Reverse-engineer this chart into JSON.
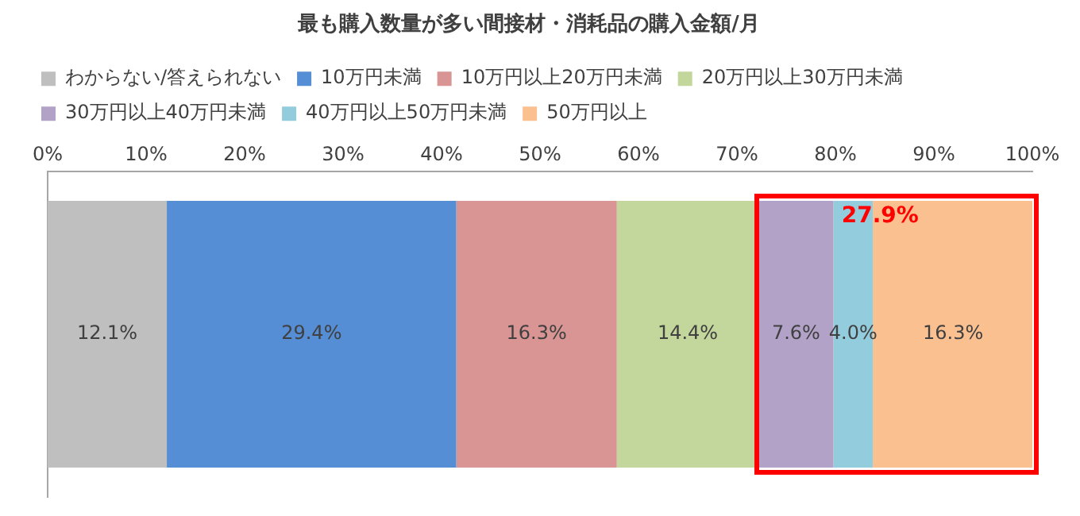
{
  "chart_data": {
    "type": "bar",
    "title": "最も購入数量が多い間接材・消耗品の購入金額/月",
    "orientation": "horizontal",
    "stacked": true,
    "categories": [
      null
    ],
    "series": [
      {
        "name": "わからない/答えられない",
        "color": "#bfbfbf",
        "values": [
          12.1
        ],
        "value_labels": [
          "12.1%"
        ]
      },
      {
        "name": "10万円未満",
        "color": "#558ed5",
        "values": [
          29.4
        ],
        "value_labels": [
          "29.4%"
        ]
      },
      {
        "name": "10万円以上20万円未満",
        "color": "#d99594",
        "values": [
          16.3
        ],
        "value_labels": [
          "16.3%"
        ]
      },
      {
        "name": "20万円以上30万円未満",
        "color": "#c3d69b",
        "values": [
          14.4
        ],
        "value_labels": [
          "14.4%"
        ]
      },
      {
        "name": "30万円以上40万円未満",
        "color": "#b3a2c7",
        "values": [
          7.6
        ],
        "value_labels": [
          "7.6%"
        ]
      },
      {
        "name": "40万円以上50万円未満",
        "color": "#93cddd",
        "values": [
          4.0
        ],
        "value_labels": [
          "4.0%"
        ]
      },
      {
        "name": "50万円以上",
        "color": "#fac090",
        "values": [
          16.3
        ],
        "value_labels": [
          "16.3%"
        ]
      }
    ],
    "xlim": [
      0,
      100
    ],
    "xticks": [
      {
        "value": 0,
        "label": "0%"
      },
      {
        "value": 10,
        "label": "10%"
      },
      {
        "value": 20,
        "label": "20%"
      },
      {
        "value": 30,
        "label": "30%"
      },
      {
        "value": 40,
        "label": "40%"
      },
      {
        "value": 50,
        "label": "50%"
      },
      {
        "value": 60,
        "label": "60%"
      },
      {
        "value": 70,
        "label": "70%"
      },
      {
        "value": 80,
        "label": "80%"
      },
      {
        "value": 90,
        "label": "90%"
      },
      {
        "value": 100,
        "label": "100%"
      }
    ],
    "grid": false,
    "legend": "top",
    "annotations": [
      "27.9%"
    ]
  }
}
